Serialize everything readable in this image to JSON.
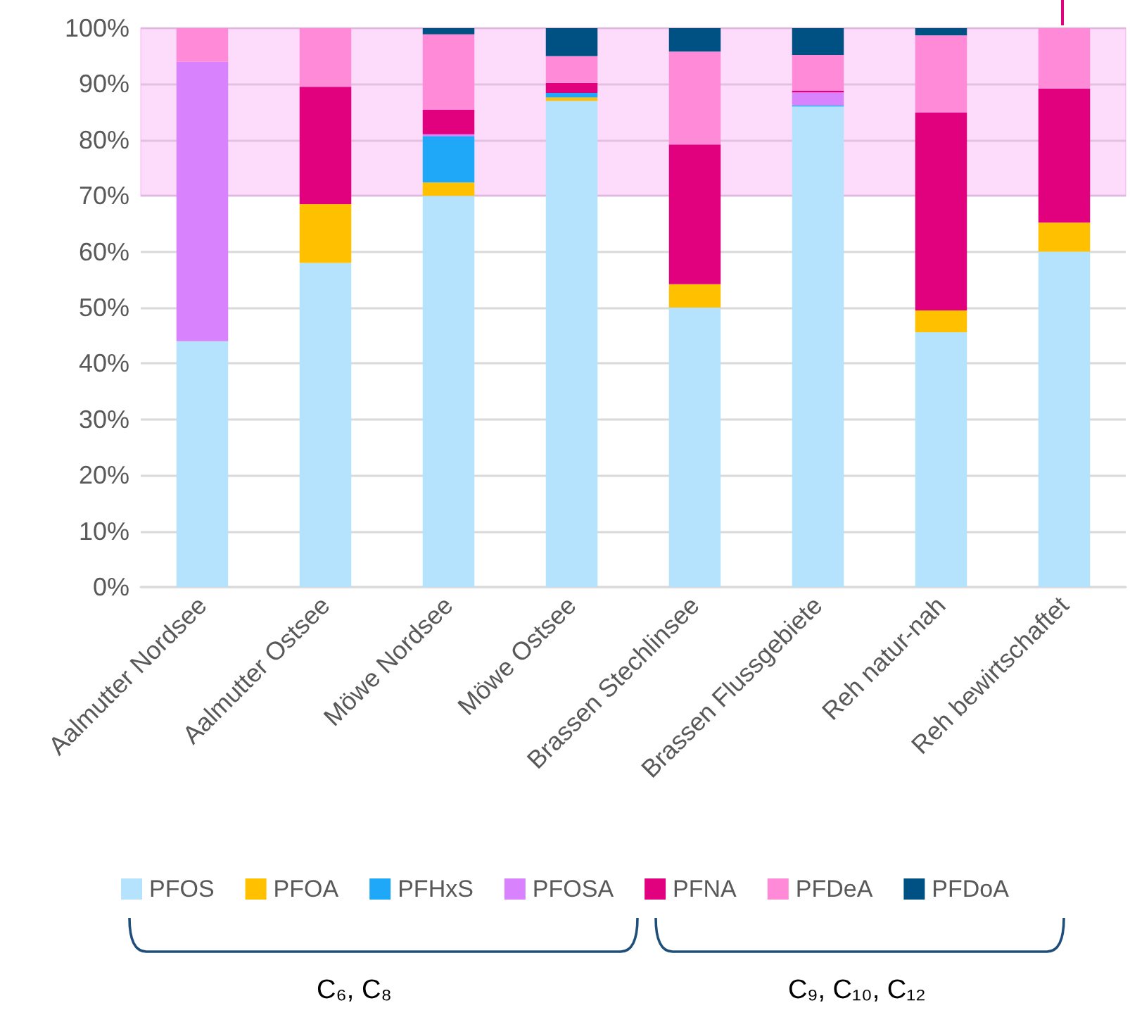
{
  "chart_data": {
    "type": "bar",
    "stacked": true,
    "categories": [
      "Aalmutter Nordsee",
      "Aalmutter Ostsee",
      "Möwe Nordsee",
      "Möwe Ostsee",
      "Brassen Stechlinsee",
      "Brassen Flussgebiete",
      "Reh natur-nah",
      "Reh bewirtschaftet"
    ],
    "series": [
      {
        "name": "PFOS",
        "color": "#b5e3fd",
        "values": [
          44,
          58,
          70,
          87,
          50,
          86,
          45.6,
          60
        ]
      },
      {
        "name": "PFOA",
        "color": "#ffc000",
        "values": [
          null,
          10.5,
          2.4,
          0.6,
          4.2,
          null,
          3.9,
          5.2
        ]
      },
      {
        "name": "PFHxS",
        "color": "#20a8f8",
        "values": [
          null,
          null,
          8.3,
          0.8,
          null,
          0.2,
          null,
          null
        ]
      },
      {
        "name": "PFOSA",
        "color": "#d883fd",
        "values": [
          50,
          null,
          0.3,
          null,
          null,
          2.3,
          null,
          null
        ]
      },
      {
        "name": "PFNA",
        "color": "#e1007e",
        "values": [
          null,
          21,
          4.4,
          1.8,
          25,
          0.3,
          35.4,
          24
        ]
      },
      {
        "name": "PFDeA",
        "color": "#ff8ad8",
        "values": [
          6,
          10.5,
          13.5,
          4.8,
          16.6,
          6.4,
          13.8,
          10.8
        ]
      },
      {
        "name": "PFDoA",
        "color": "#005183",
        "values": [
          null,
          null,
          1.1,
          5,
          4.2,
          4.9,
          1.3,
          null
        ]
      }
    ],
    "ylim": [
      0,
      100
    ],
    "yticks": [
      {
        "value": 0,
        "label": "0%"
      },
      {
        "value": 10,
        "label": "10%"
      },
      {
        "value": 20,
        "label": "20%"
      },
      {
        "value": 30,
        "label": "30%"
      },
      {
        "value": 40,
        "label": "40%"
      },
      {
        "value": 50,
        "label": "50%"
      },
      {
        "value": 60,
        "label": "60%"
      },
      {
        "value": 70,
        "label": "70%"
      },
      {
        "value": 80,
        "label": "80%"
      },
      {
        "value": 90,
        "label": "90%"
      },
      {
        "value": 100,
        "label": "100%"
      }
    ],
    "bands": [
      {
        "axis": "y",
        "from": 70,
        "to": 100,
        "color": "#f588f3"
      }
    ],
    "grid": "y",
    "legend": "bottom",
    "annotations": [
      "C₆, C₈",
      "C₉, C₁₀, C₁₂"
    ]
  }
}
